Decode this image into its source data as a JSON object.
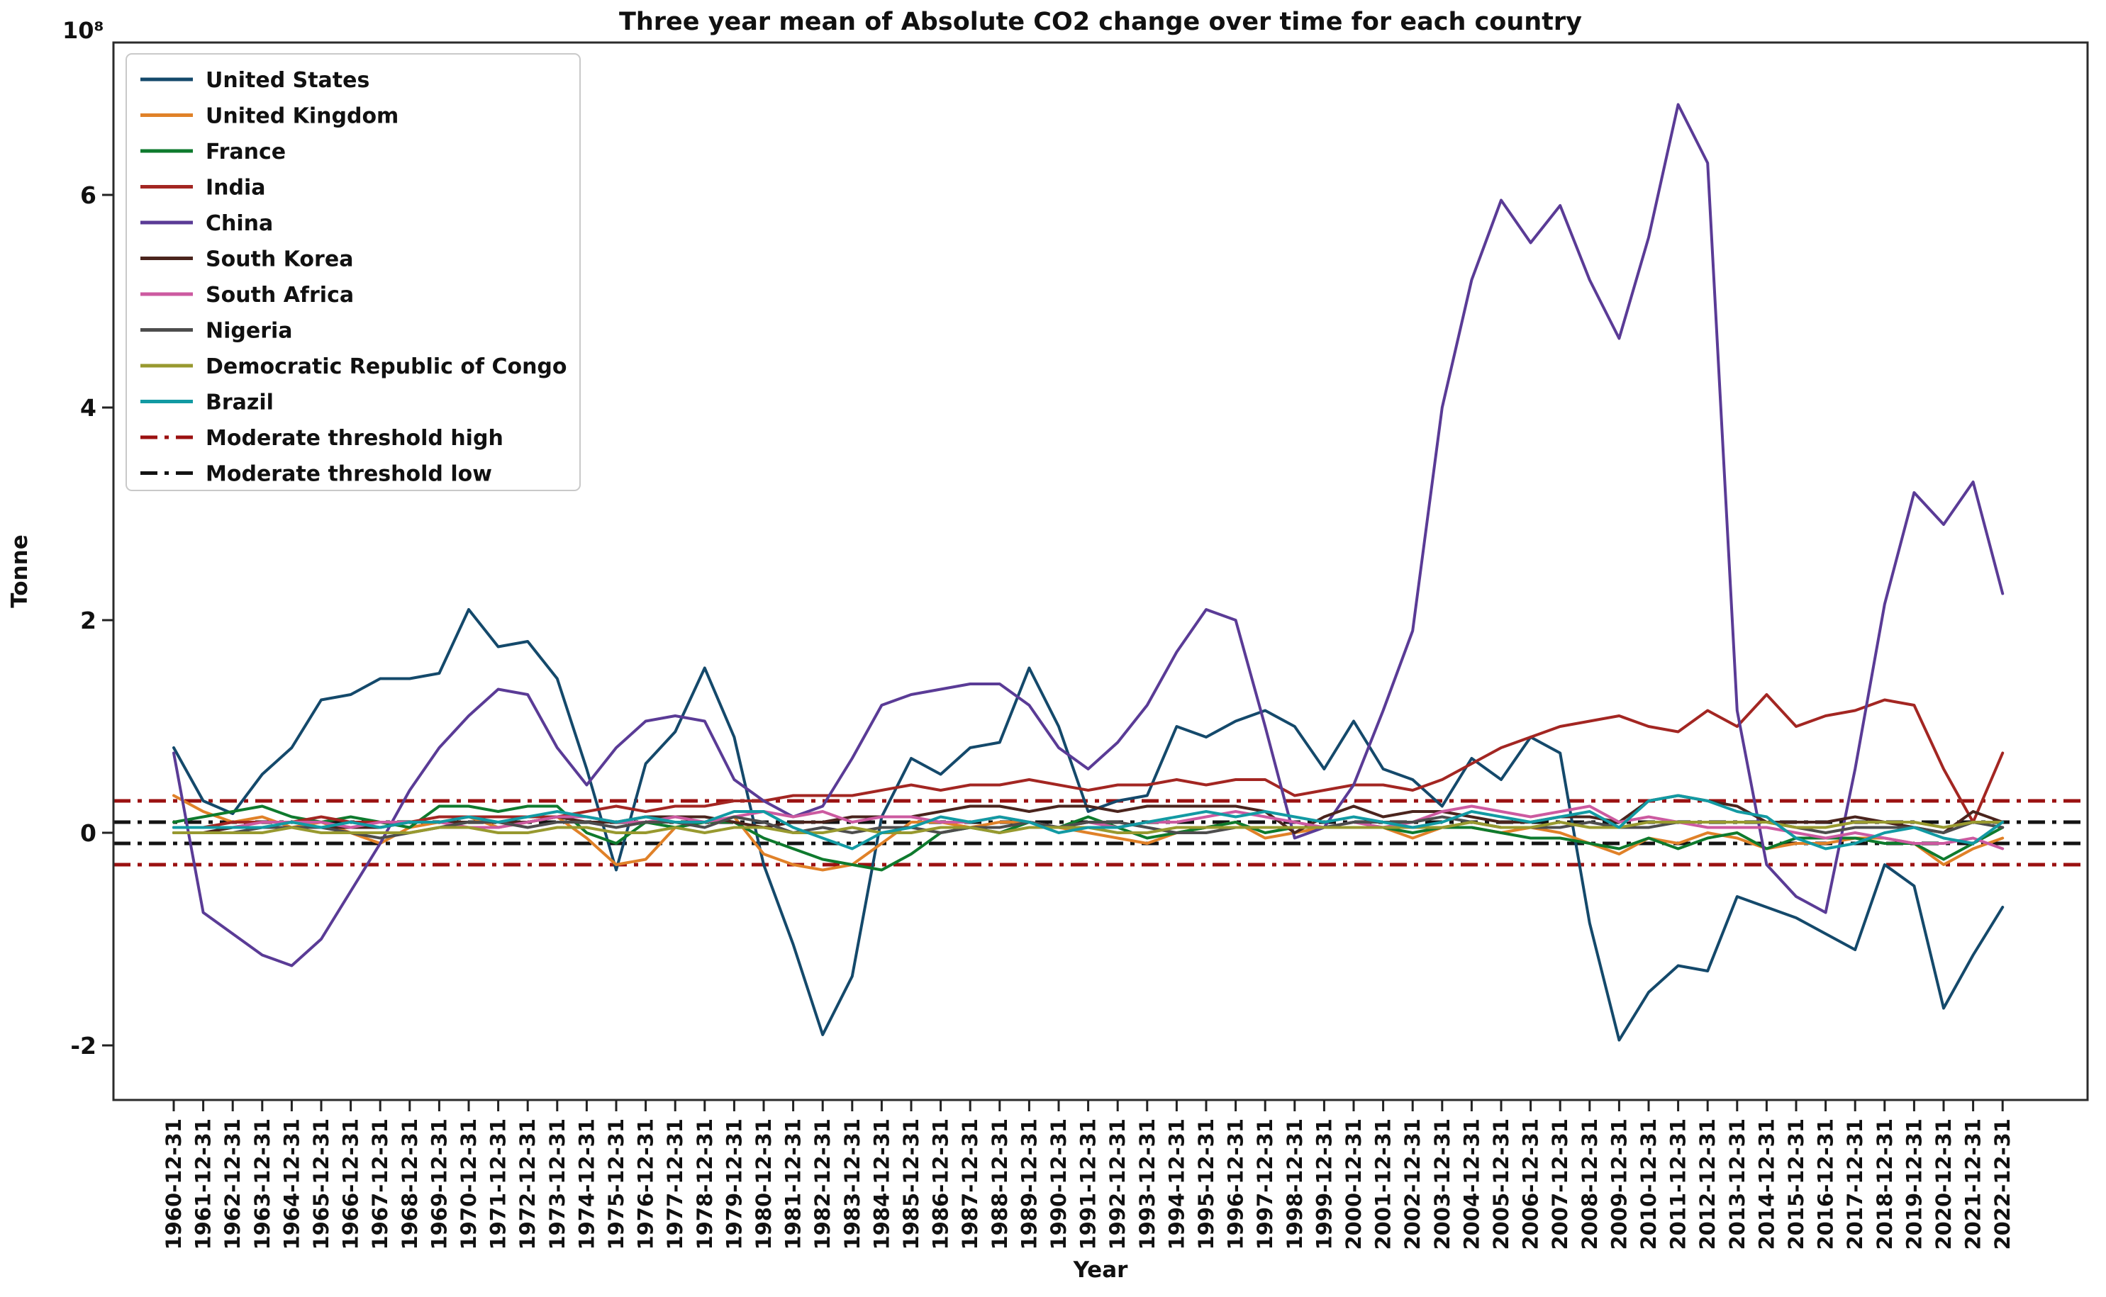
{
  "figure": {
    "title": "Three year mean of Absolute CO2 change over time for each country",
    "ylabel": "Tonne",
    "xlabel": "Year",
    "offset_text": "10⁸"
  },
  "chart_data": {
    "type": "line",
    "title": "Three year mean of Absolute CO2 change over time for each country",
    "xlabel": "Year",
    "ylabel": "Tonne",
    "y_unit_multiplier": "1e8",
    "grid": false,
    "legend_position": "upper left",
    "ylim": [
      -2.55,
      7.4
    ],
    "yticks": [
      -2,
      0,
      2,
      4,
      6
    ],
    "x": [
      "1960-12-31",
      "1961-12-31",
      "1962-12-31",
      "1963-12-31",
      "1964-12-31",
      "1965-12-31",
      "1966-12-31",
      "1967-12-31",
      "1968-12-31",
      "1969-12-31",
      "1970-12-31",
      "1971-12-31",
      "1972-12-31",
      "1973-12-31",
      "1974-12-31",
      "1975-12-31",
      "1976-12-31",
      "1977-12-31",
      "1978-12-31",
      "1979-12-31",
      "1980-12-31",
      "1981-12-31",
      "1982-12-31",
      "1983-12-31",
      "1984-12-31",
      "1985-12-31",
      "1986-12-31",
      "1987-12-31",
      "1988-12-31",
      "1989-12-31",
      "1990-12-31",
      "1991-12-31",
      "1992-12-31",
      "1993-12-31",
      "1994-12-31",
      "1995-12-31",
      "1996-12-31",
      "1997-12-31",
      "1998-12-31",
      "1999-12-31",
      "2000-12-31",
      "2001-12-31",
      "2002-12-31",
      "2003-12-31",
      "2004-12-31",
      "2005-12-31",
      "2006-12-31",
      "2007-12-31",
      "2008-12-31",
      "2009-12-31",
      "2010-12-31",
      "2011-12-31",
      "2012-12-31",
      "2013-12-31",
      "2014-12-31",
      "2015-12-31",
      "2016-12-31",
      "2017-12-31",
      "2018-12-31",
      "2019-12-31",
      "2020-12-31",
      "2021-12-31",
      "2022-12-31"
    ],
    "series": [
      {
        "name": "United States",
        "color": "#14496b",
        "values": [
          0.8,
          0.3,
          0.18,
          0.55,
          0.8,
          1.25,
          1.3,
          1.45,
          1.45,
          1.5,
          2.1,
          1.75,
          1.8,
          1.45,
          0.6,
          -0.35,
          0.65,
          0.95,
          1.55,
          0.9,
          -0.3,
          -1.05,
          -1.9,
          -1.35,
          0.15,
          0.7,
          0.55,
          0.8,
          0.85,
          1.55,
          1.0,
          0.2,
          0.3,
          0.35,
          1.0,
          0.9,
          1.05,
          1.15,
          1.0,
          0.6,
          1.05,
          0.6,
          0.5,
          0.25,
          0.7,
          0.5,
          0.9,
          0.75,
          -0.85,
          -1.95,
          -1.5,
          -1.25,
          -1.3,
          -0.6,
          -0.7,
          -0.8,
          -0.95,
          -1.1,
          -0.3,
          -0.5,
          -1.65,
          -1.15,
          -0.7
        ]
      },
      {
        "name": "United Kingdom",
        "color": "#e08128",
        "values": [
          0.35,
          0.2,
          0.1,
          0.15,
          0.05,
          0.1,
          0.0,
          -0.1,
          0.05,
          0.1,
          0.15,
          0.05,
          0.1,
          0.15,
          -0.05,
          -0.3,
          -0.25,
          0.05,
          0.1,
          0.15,
          -0.2,
          -0.3,
          -0.35,
          -0.3,
          -0.1,
          0.1,
          0.1,
          0.05,
          0.1,
          0.1,
          0.05,
          0.0,
          -0.05,
          -0.1,
          0.0,
          0.05,
          0.1,
          -0.05,
          0.0,
          0.05,
          0.05,
          0.05,
          -0.05,
          0.05,
          0.05,
          0.0,
          0.05,
          0.0,
          -0.1,
          -0.2,
          -0.05,
          -0.1,
          0.0,
          -0.05,
          -0.15,
          -0.1,
          -0.1,
          -0.05,
          -0.05,
          -0.1,
          -0.3,
          -0.15,
          -0.05
        ]
      },
      {
        "name": "France",
        "color": "#0e7a2d",
        "values": [
          0.1,
          0.15,
          0.2,
          0.25,
          0.15,
          0.1,
          0.15,
          0.1,
          0.05,
          0.25,
          0.25,
          0.2,
          0.25,
          0.25,
          0.0,
          -0.1,
          0.1,
          0.05,
          0.1,
          0.1,
          -0.05,
          -0.15,
          -0.25,
          -0.3,
          -0.35,
          -0.2,
          0.0,
          0.05,
          0.0,
          0.1,
          0.05,
          0.15,
          0.05,
          -0.05,
          0.0,
          0.05,
          0.1,
          0.0,
          0.05,
          0.05,
          0.05,
          0.05,
          0.0,
          0.05,
          0.05,
          0.0,
          -0.05,
          -0.05,
          -0.1,
          -0.15,
          -0.05,
          -0.15,
          -0.05,
          0.0,
          -0.15,
          -0.05,
          -0.05,
          -0.05,
          -0.1,
          -0.1,
          -0.25,
          -0.1,
          0.05
        ]
      },
      {
        "name": "India",
        "color": "#a32622",
        "values": [
          0.05,
          0.05,
          0.1,
          0.1,
          0.1,
          0.15,
          0.1,
          0.1,
          0.1,
          0.15,
          0.15,
          0.15,
          0.15,
          0.15,
          0.2,
          0.25,
          0.2,
          0.25,
          0.25,
          0.3,
          0.3,
          0.35,
          0.35,
          0.35,
          0.4,
          0.45,
          0.4,
          0.45,
          0.45,
          0.5,
          0.45,
          0.4,
          0.45,
          0.45,
          0.5,
          0.45,
          0.5,
          0.5,
          0.35,
          0.4,
          0.45,
          0.45,
          0.4,
          0.5,
          0.65,
          0.8,
          0.9,
          1.0,
          1.05,
          1.1,
          1.0,
          0.95,
          1.15,
          1.0,
          1.3,
          1.0,
          1.1,
          1.15,
          1.25,
          1.2,
          0.6,
          0.1,
          0.75
        ]
      },
      {
        "name": "China",
        "color": "#5a3b96",
        "values": [
          0.75,
          -0.75,
          -0.95,
          -1.15,
          -1.25,
          -1.0,
          -0.55,
          -0.1,
          0.4,
          0.8,
          1.1,
          1.35,
          1.3,
          0.8,
          0.45,
          0.8,
          1.05,
          1.1,
          1.05,
          0.5,
          0.3,
          0.15,
          0.25,
          0.7,
          1.2,
          1.3,
          1.35,
          1.4,
          1.4,
          1.2,
          0.8,
          0.6,
          0.85,
          1.2,
          1.7,
          2.1,
          2.0,
          1.0,
          -0.05,
          0.05,
          0.45,
          1.15,
          1.9,
          4.0,
          5.2,
          5.95,
          5.55,
          5.9,
          5.2,
          4.65,
          5.6,
          6.85,
          6.3,
          1.15,
          -0.3,
          -0.6,
          -0.75,
          0.6,
          2.15,
          3.2,
          2.9,
          3.3,
          2.25
        ]
      },
      {
        "name": "South Korea",
        "color": "#4a241d",
        "values": [
          0.0,
          0.0,
          0.05,
          0.05,
          0.05,
          0.05,
          0.05,
          0.05,
          0.1,
          0.1,
          0.1,
          0.1,
          0.1,
          0.15,
          0.1,
          0.1,
          0.15,
          0.15,
          0.15,
          0.1,
          0.05,
          0.1,
          0.1,
          0.15,
          0.15,
          0.15,
          0.2,
          0.25,
          0.25,
          0.2,
          0.25,
          0.25,
          0.2,
          0.25,
          0.25,
          0.25,
          0.25,
          0.2,
          0.0,
          0.15,
          0.25,
          0.15,
          0.2,
          0.2,
          0.15,
          0.1,
          0.1,
          0.15,
          0.15,
          0.1,
          0.3,
          0.35,
          0.3,
          0.25,
          0.1,
          0.1,
          0.1,
          0.15,
          0.1,
          0.05,
          0.0,
          0.2,
          0.1
        ]
      },
      {
        "name": "South Africa",
        "color": "#cc5aa0",
        "values": [
          0.05,
          0.05,
          0.05,
          0.1,
          0.1,
          0.1,
          0.05,
          0.1,
          0.1,
          0.1,
          0.05,
          0.05,
          0.1,
          0.15,
          0.15,
          0.1,
          0.1,
          0.15,
          0.1,
          0.15,
          0.2,
          0.15,
          0.2,
          0.1,
          0.15,
          0.15,
          0.1,
          0.1,
          0.15,
          0.1,
          0.05,
          0.1,
          0.05,
          0.1,
          0.1,
          0.15,
          0.2,
          0.15,
          0.1,
          0.05,
          0.1,
          0.05,
          0.1,
          0.2,
          0.25,
          0.2,
          0.15,
          0.2,
          0.25,
          0.1,
          0.15,
          0.1,
          0.05,
          0.05,
          0.05,
          0.0,
          -0.05,
          0.0,
          -0.05,
          -0.1,
          -0.1,
          -0.05,
          -0.15
        ]
      },
      {
        "name": "Nigeria",
        "color": "#4d4d4d",
        "values": [
          0.0,
          0.0,
          0.0,
          0.05,
          0.05,
          0.05,
          0.0,
          -0.05,
          0.0,
          0.05,
          0.1,
          0.1,
          0.05,
          0.1,
          0.1,
          0.05,
          0.1,
          0.1,
          0.05,
          0.15,
          0.1,
          0.0,
          0.05,
          0.0,
          0.05,
          0.05,
          0.0,
          0.05,
          0.05,
          0.1,
          0.05,
          0.1,
          0.1,
          0.05,
          0.0,
          0.0,
          0.05,
          0.05,
          0.05,
          0.05,
          0.1,
          0.1,
          0.1,
          0.15,
          0.1,
          0.05,
          0.05,
          0.05,
          0.1,
          0.05,
          0.05,
          0.1,
          0.1,
          0.1,
          0.1,
          0.05,
          0.0,
          0.05,
          0.05,
          0.05,
          0.0,
          0.1,
          0.05
        ]
      },
      {
        "name": "Democratic Republic of Congo",
        "color": "#98992f",
        "values": [
          0.0,
          0.0,
          0.0,
          0.0,
          0.05,
          0.0,
          0.0,
          0.0,
          0.0,
          0.05,
          0.05,
          0.0,
          0.0,
          0.05,
          0.05,
          0.0,
          0.0,
          0.05,
          0.0,
          0.05,
          0.05,
          0.0,
          0.0,
          0.05,
          0.0,
          0.0,
          0.05,
          0.05,
          0.0,
          0.05,
          0.05,
          0.05,
          0.0,
          0.0,
          0.05,
          0.05,
          0.05,
          0.05,
          0.05,
          0.05,
          0.05,
          0.05,
          0.05,
          0.05,
          0.1,
          0.05,
          0.05,
          0.1,
          0.05,
          0.05,
          0.1,
          0.1,
          0.1,
          0.1,
          0.1,
          0.05,
          0.05,
          0.1,
          0.1,
          0.1,
          0.05,
          0.1,
          0.1
        ]
      },
      {
        "name": "Brazil",
        "color": "#129aa3",
        "values": [
          0.05,
          0.05,
          0.05,
          0.05,
          0.1,
          0.05,
          0.1,
          0.05,
          0.1,
          0.1,
          0.15,
          0.1,
          0.15,
          0.2,
          0.15,
          0.1,
          0.15,
          0.1,
          0.1,
          0.2,
          0.2,
          0.05,
          -0.05,
          -0.15,
          0.0,
          0.05,
          0.15,
          0.1,
          0.15,
          0.1,
          0.0,
          0.05,
          0.05,
          0.1,
          0.15,
          0.2,
          0.15,
          0.2,
          0.15,
          0.1,
          0.15,
          0.1,
          0.05,
          0.1,
          0.2,
          0.15,
          0.1,
          0.15,
          0.2,
          0.05,
          0.3,
          0.35,
          0.3,
          0.2,
          0.15,
          -0.05,
          -0.15,
          -0.1,
          0.0,
          0.05,
          -0.05,
          -0.1,
          0.1
        ]
      }
    ],
    "thresholds": [
      {
        "name": "Moderate threshold high",
        "color": "#9b1111",
        "style": "dashdot",
        "values": [
          0.3,
          -0.3
        ]
      },
      {
        "name": "Moderate threshold low",
        "color": "#131313",
        "style": "dashdot",
        "values": [
          0.1,
          -0.1
        ]
      }
    ]
  }
}
